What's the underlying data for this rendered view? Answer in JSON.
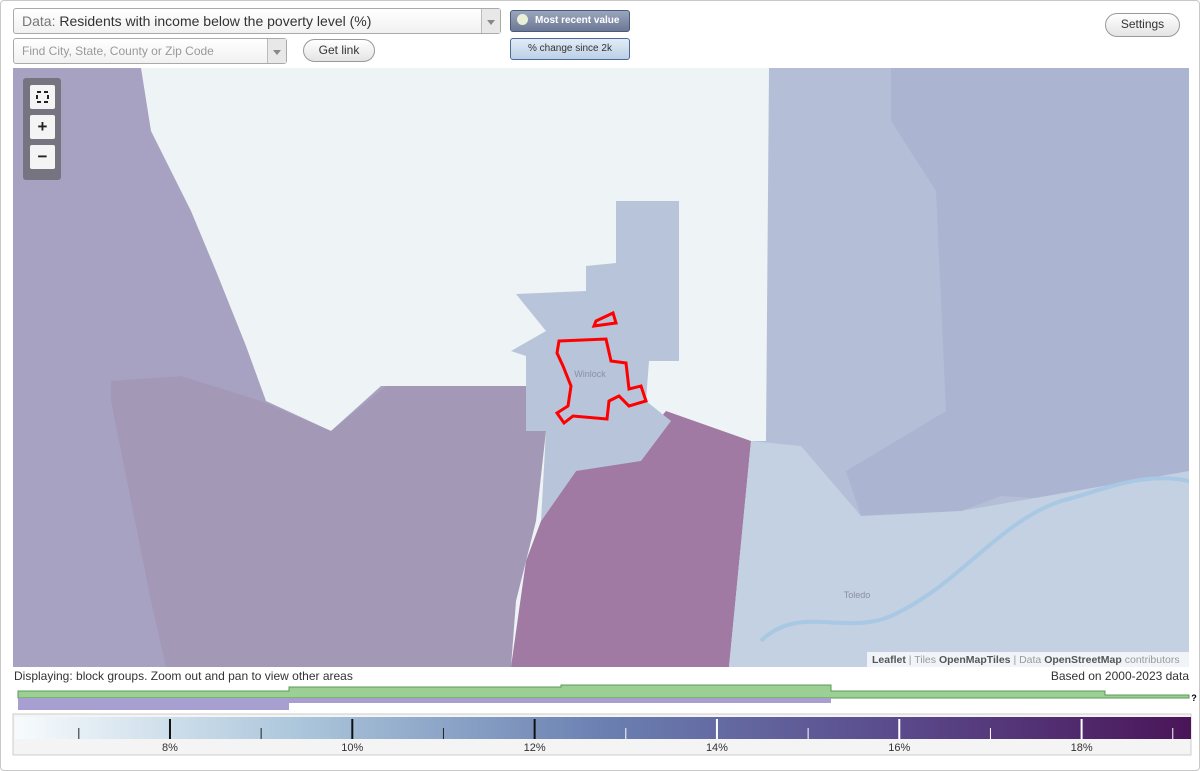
{
  "data_select": {
    "label": "Data:",
    "value": "Residents with income below the poverty level (%)"
  },
  "search_placeholder": "Find City, State, County or Zip Code",
  "buttons": {
    "get_link": "Get link",
    "most_recent": "Most recent value",
    "change": "% change since 2k",
    "settings": "Settings"
  },
  "zoom": {
    "in": "+",
    "out": "−"
  },
  "map": {
    "place_labels": [
      "Winlock",
      "Toledo"
    ],
    "attribution": {
      "leaflet": "Leaflet",
      "separator": "|",
      "tiles_label": "Tiles",
      "tiles": "OpenMapTiles",
      "data_label": "Data",
      "data": "OpenStreetMap",
      "contributors": "contributors"
    }
  },
  "footer": {
    "displaying": "Displaying: block groups. Zoom out and pan to view other areas",
    "based_on": "Based on 2000-2023 data",
    "help": "?"
  },
  "chart_data": {
    "type": "color-scale",
    "xlim": [
      6.3,
      19.2
    ],
    "xticks": [
      {
        "value": 8,
        "label": "8%"
      },
      {
        "value": 10,
        "label": "10%"
      },
      {
        "value": 12,
        "label": "12%"
      },
      {
        "value": 14,
        "label": "14%"
      },
      {
        "value": 16,
        "label": "16%"
      },
      {
        "value": 18,
        "label": "18%"
      }
    ],
    "minor_ticks": [
      7,
      9,
      11,
      13,
      15,
      17,
      19
    ],
    "colors": [
      "#f7fbfd",
      "#a9c4da",
      "#6b80b1",
      "#5a4a8c",
      "#4a1558"
    ]
  }
}
